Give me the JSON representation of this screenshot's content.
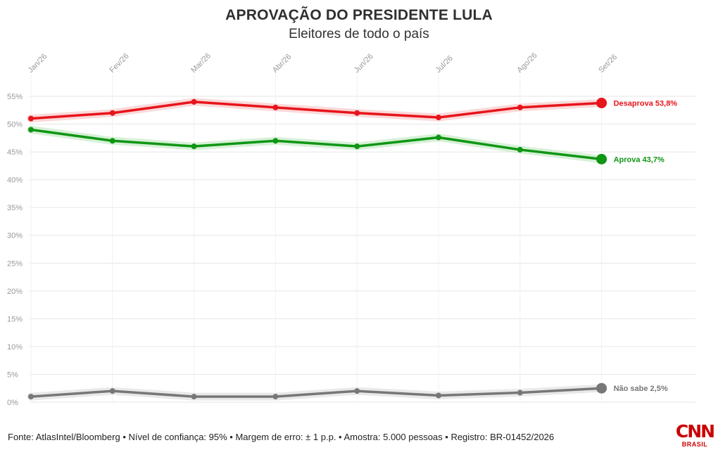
{
  "header": {
    "title": "APROVAÇÃO DO PRESIDENTE LULA",
    "subtitle": "Eleitores de todo o país"
  },
  "footer": {
    "source": "Fonte: AtlasIntel/Bloomberg • Nível de confiança: 95% • Margem de erro: ± 1 p.p. • Amostra: 5.000 pessoas • Registro: BR-01452/2026"
  },
  "logo": {
    "mark": "CNN",
    "sub": "BRASIL",
    "color": "#cc0000"
  },
  "chart_data": {
    "type": "line",
    "categories": [
      "Jan/26",
      "Fev/26",
      "Mar/26",
      "Abr/26",
      "Jun/26",
      "Jul/26",
      "Ago/26",
      "Set/26"
    ],
    "ylim": [
      0,
      55
    ],
    "yticks": [
      0,
      5,
      10,
      15,
      20,
      25,
      30,
      35,
      40,
      45,
      50,
      55
    ],
    "ytick_labels": [
      "0%",
      "5%",
      "10%",
      "15%",
      "20%",
      "25%",
      "30%",
      "35%",
      "40%",
      "45%",
      "50%",
      "55%"
    ],
    "grid": true,
    "series": [
      {
        "name": "Desaprova",
        "color": "#e8141b",
        "halo": "#f9d0d0",
        "values": [
          51.0,
          52.0,
          54.0,
          53.0,
          52.0,
          51.2,
          53.0,
          53.8
        ],
        "end_label": "Desaprova 53,8%"
      },
      {
        "name": "Aprova",
        "color": "#0f9614",
        "halo": "#cdeccd",
        "values": [
          49.0,
          47.0,
          46.0,
          47.0,
          46.0,
          47.6,
          45.4,
          43.7
        ],
        "end_label": "Aprova 43,7%"
      },
      {
        "name": "Não sabe",
        "color": "#777777",
        "halo": "#e4e4e4",
        "values": [
          1.0,
          2.0,
          1.0,
          1.0,
          2.0,
          1.2,
          1.7,
          2.5
        ],
        "end_label": "Não sabe 2,5%"
      }
    ]
  }
}
